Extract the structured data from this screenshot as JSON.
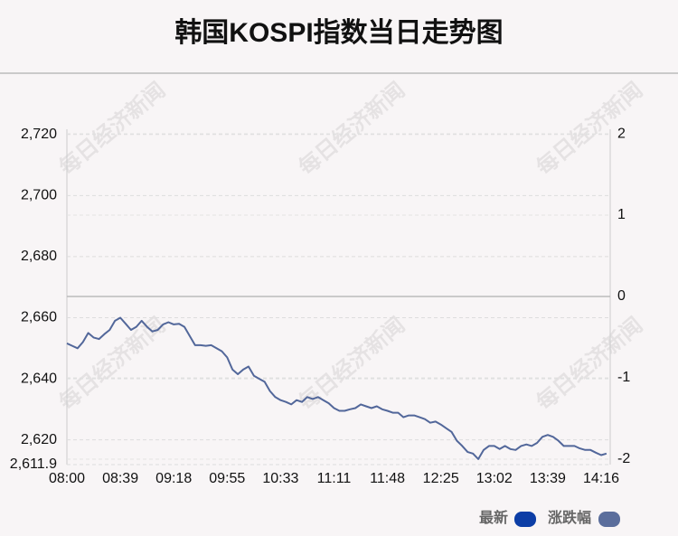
{
  "chart_data": {
    "type": "line",
    "title": "韩国KOSPI指数当日走势图",
    "watermark": "每日经济新闻",
    "color": "#52679a",
    "categories": [
      "08:00",
      null,
      null,
      null,
      null,
      null,
      null,
      null,
      null,
      null,
      "08:39",
      null,
      null,
      null,
      null,
      null,
      null,
      null,
      null,
      null,
      "09:18",
      null,
      null,
      null,
      null,
      null,
      null,
      null,
      null,
      null,
      "09:55",
      null,
      null,
      null,
      null,
      null,
      null,
      null,
      null,
      null,
      "10:33",
      null,
      null,
      null,
      null,
      null,
      null,
      null,
      null,
      null,
      "11:11",
      null,
      null,
      null,
      null,
      null,
      null,
      null,
      null,
      null,
      "11:48",
      null,
      null,
      null,
      null,
      null,
      null,
      null,
      null,
      null,
      "12:25",
      null,
      null,
      null,
      null,
      null,
      null,
      null,
      null,
      null,
      "13:02",
      null,
      null,
      null,
      null,
      null,
      null,
      null,
      null,
      null,
      "13:39",
      null,
      null,
      null,
      null,
      null,
      null,
      null,
      null,
      null,
      "14:16",
      null
    ],
    "values": [
      2651.6,
      2650.8,
      2650,
      2652,
      2655,
      2653.5,
      2653,
      2654.6,
      2656,
      2659,
      2660,
      2658,
      2656,
      2657,
      2659,
      2657,
      2655.5,
      2656,
      2657.8,
      2658.5,
      2657.8,
      2658,
      2657,
      2654,
      2651,
      2651,
      2650.8,
      2651,
      2650,
      2649,
      2647,
      2643,
      2641.5,
      2643,
      2644,
      2641,
      2640,
      2639,
      2636,
      2634,
      2633,
      2632.4,
      2631.6,
      2633,
      2632.4,
      2634,
      2633.4,
      2634,
      2633,
      2632,
      2630.4,
      2629.5,
      2629.5,
      2630,
      2630.4,
      2631.6,
      2631,
      2630.4,
      2631,
      2630,
      2629.5,
      2628.9,
      2628.9,
      2627.4,
      2628,
      2628,
      2627.4,
      2626.8,
      2625.6,
      2626,
      2625,
      2623.8,
      2622.6,
      2619.7,
      2618,
      2616,
      2615.5,
      2613.7,
      2616.7,
      2618,
      2618,
      2617,
      2618,
      2617,
      2616.7,
      2618,
      2618.5,
      2618,
      2619,
      2621,
      2621.6,
      2621,
      2619.7,
      2618,
      2618,
      2618,
      2617.2,
      2616.7,
      2616.7,
      2615.8,
      2615,
      2615.5
    ],
    "ylim": [
      2611.9,
      2721.7
    ],
    "yticks": [
      {
        "value": 2611.9,
        "label": "2,611.9"
      },
      {
        "value": 2620,
        "label": "2,620"
      },
      {
        "value": 2640,
        "label": "2,640"
      },
      {
        "value": 2660,
        "label": "2,660"
      },
      {
        "value": 2680,
        "label": "2,680"
      },
      {
        "value": 2700,
        "label": "2,700"
      },
      {
        "value": 2720,
        "label": "2,720"
      }
    ],
    "y2lim": [
      -2.067,
      2.056
    ],
    "y2ticks": [
      2,
      1,
      0,
      -1,
      -2
    ],
    "grid": true,
    "legend": [
      {
        "name": "最新",
        "color": "#0c3ea6"
      },
      {
        "name": "涨跌幅",
        "color": "#5b6e9c"
      }
    ]
  }
}
